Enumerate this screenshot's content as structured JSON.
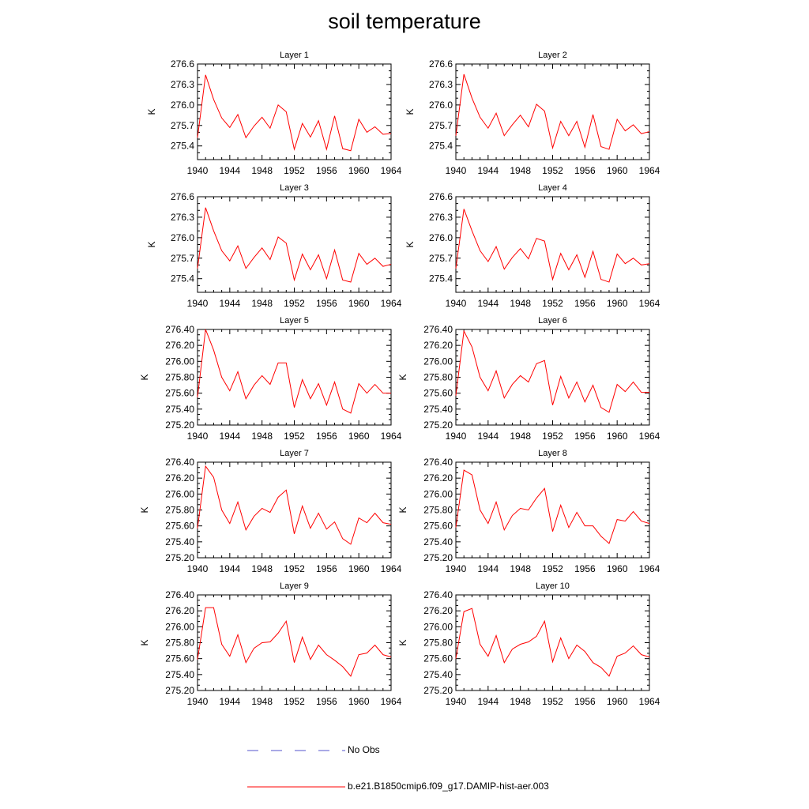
{
  "title": "soil temperature",
  "legend": [
    {
      "label": "No Obs",
      "color": "#5555cc",
      "style": "dashed"
    },
    {
      "label": "b.e21.B1850cmip6.f09_g17.DAMIP-hist-aer.003",
      "color": "#ff0000",
      "style": "solid"
    }
  ],
  "chart_data": [
    {
      "type": "line",
      "title": "Layer 1",
      "ylabel": "K",
      "xlim": [
        1940,
        1964
      ],
      "ylim": [
        275.2,
        276.6
      ],
      "xticks": [
        "1940",
        "1944",
        "1948",
        "1952",
        "1956",
        "1960",
        "1964"
      ],
      "yticks": [
        "275.4",
        "275.7",
        "276.0",
        "276.3",
        "276.6"
      ],
      "x": [
        1940,
        1941,
        1942,
        1943,
        1944,
        1945,
        1946,
        1947,
        1948,
        1949,
        1950,
        1951,
        1952,
        1953,
        1954,
        1955,
        1956,
        1957,
        1958,
        1959,
        1960,
        1961,
        1962,
        1963,
        1964
      ],
      "series": [
        {
          "color": "#ff0000",
          "values": [
            275.52,
            276.44,
            276.08,
            275.81,
            275.67,
            275.86,
            275.52,
            275.69,
            275.82,
            275.66,
            276.0,
            275.9,
            275.35,
            275.73,
            275.53,
            275.77,
            275.35,
            275.84,
            275.36,
            275.33,
            275.79,
            275.6,
            275.68,
            275.57,
            275.58
          ]
        }
      ]
    },
    {
      "type": "line",
      "title": "Layer 2",
      "ylabel": "K",
      "xlim": [
        1940,
        1964
      ],
      "ylim": [
        275.2,
        276.6
      ],
      "xticks": [
        "1940",
        "1944",
        "1948",
        "1952",
        "1956",
        "1960",
        "1964"
      ],
      "yticks": [
        "275.4",
        "275.7",
        "276.0",
        "276.3",
        "276.6"
      ],
      "x": [
        1940,
        1941,
        1942,
        1943,
        1944,
        1945,
        1946,
        1947,
        1948,
        1949,
        1950,
        1951,
        1952,
        1953,
        1954,
        1955,
        1956,
        1957,
        1958,
        1959,
        1960,
        1961,
        1962,
        1963,
        1964
      ],
      "series": [
        {
          "color": "#ff0000",
          "values": [
            275.55,
            276.45,
            276.1,
            275.82,
            275.66,
            275.88,
            275.55,
            275.71,
            275.85,
            275.68,
            276.01,
            275.91,
            275.37,
            275.76,
            275.55,
            275.76,
            275.38,
            275.86,
            275.39,
            275.35,
            275.79,
            275.62,
            275.71,
            275.58,
            275.61
          ]
        }
      ]
    },
    {
      "type": "line",
      "title": "Layer 3",
      "ylabel": "K",
      "xlim": [
        1940,
        1964
      ],
      "ylim": [
        275.2,
        276.6
      ],
      "xticks": [
        "1940",
        "1944",
        "1948",
        "1952",
        "1956",
        "1960",
        "1964"
      ],
      "yticks": [
        "275.4",
        "275.7",
        "276.0",
        "276.3",
        "276.6"
      ],
      "x": [
        1940,
        1941,
        1942,
        1943,
        1944,
        1945,
        1946,
        1947,
        1948,
        1949,
        1950,
        1951,
        1952,
        1953,
        1954,
        1955,
        1956,
        1957,
        1958,
        1959,
        1960,
        1961,
        1962,
        1963,
        1964
      ],
      "series": [
        {
          "color": "#ff0000",
          "values": [
            275.55,
            276.44,
            276.1,
            275.81,
            275.66,
            275.88,
            275.55,
            275.71,
            275.85,
            275.68,
            276.01,
            275.92,
            275.38,
            275.76,
            275.53,
            275.75,
            275.4,
            275.82,
            275.38,
            275.35,
            275.77,
            275.61,
            275.7,
            275.58,
            275.61
          ]
        }
      ]
    },
    {
      "type": "line",
      "title": "Layer 4",
      "ylabel": "K",
      "xlim": [
        1940,
        1964
      ],
      "ylim": [
        275.2,
        276.6
      ],
      "xticks": [
        "1940",
        "1944",
        "1948",
        "1952",
        "1956",
        "1960",
        "1964"
      ],
      "yticks": [
        "275.4",
        "275.7",
        "276.0",
        "276.3",
        "276.6"
      ],
      "x": [
        1940,
        1941,
        1942,
        1943,
        1944,
        1945,
        1946,
        1947,
        1948,
        1949,
        1950,
        1951,
        1952,
        1953,
        1954,
        1955,
        1956,
        1957,
        1958,
        1959,
        1960,
        1961,
        1962,
        1963,
        1964
      ],
      "series": [
        {
          "color": "#ff0000",
          "values": [
            275.55,
            276.42,
            276.1,
            275.81,
            275.65,
            275.87,
            275.54,
            275.71,
            275.84,
            275.69,
            275.99,
            275.95,
            275.39,
            275.77,
            275.53,
            275.75,
            275.42,
            275.8,
            275.39,
            275.35,
            275.76,
            275.62,
            275.7,
            275.6,
            275.62
          ]
        }
      ]
    },
    {
      "type": "line",
      "title": "Layer 5",
      "ylabel": "K",
      "xlim": [
        1940,
        1964
      ],
      "ylim": [
        275.2,
        276.4
      ],
      "xticks": [
        "1940",
        "1944",
        "1948",
        "1952",
        "1956",
        "1960",
        "1964"
      ],
      "yticks": [
        "275.20",
        "275.40",
        "275.60",
        "275.80",
        "276.00",
        "276.20",
        "276.40"
      ],
      "x": [
        1940,
        1941,
        1942,
        1943,
        1944,
        1945,
        1946,
        1947,
        1948,
        1949,
        1950,
        1951,
        1952,
        1953,
        1954,
        1955,
        1956,
        1957,
        1958,
        1959,
        1960,
        1961,
        1962,
        1963,
        1964
      ],
      "series": [
        {
          "color": "#ff0000",
          "values": [
            275.55,
            276.4,
            276.14,
            275.8,
            275.63,
            275.87,
            275.53,
            275.7,
            275.82,
            275.71,
            275.98,
            275.98,
            275.42,
            275.77,
            275.53,
            275.72,
            275.45,
            275.74,
            275.4,
            275.35,
            275.72,
            275.6,
            275.71,
            275.6,
            275.6
          ]
        }
      ]
    },
    {
      "type": "line",
      "title": "Layer 6",
      "ylabel": "K",
      "xlim": [
        1940,
        1964
      ],
      "ylim": [
        275.2,
        276.4
      ],
      "xticks": [
        "1940",
        "1944",
        "1948",
        "1952",
        "1956",
        "1960",
        "1964"
      ],
      "yticks": [
        "275.20",
        "275.40",
        "275.60",
        "275.80",
        "276.00",
        "276.20",
        "276.40"
      ],
      "x": [
        1940,
        1941,
        1942,
        1943,
        1944,
        1945,
        1946,
        1947,
        1948,
        1949,
        1950,
        1951,
        1952,
        1953,
        1954,
        1955,
        1956,
        1957,
        1958,
        1959,
        1960,
        1961,
        1962,
        1963,
        1964
      ],
      "series": [
        {
          "color": "#ff0000",
          "values": [
            275.57,
            276.38,
            276.18,
            275.8,
            275.63,
            275.88,
            275.54,
            275.71,
            275.82,
            275.74,
            275.97,
            276.01,
            275.45,
            275.81,
            275.54,
            275.74,
            275.49,
            275.7,
            275.42,
            275.36,
            275.71,
            275.62,
            275.74,
            275.61,
            275.61
          ]
        }
      ]
    },
    {
      "type": "line",
      "title": "Layer 7",
      "ylabel": "K",
      "xlim": [
        1940,
        1964
      ],
      "ylim": [
        275.2,
        276.4
      ],
      "xticks": [
        "1940",
        "1944",
        "1948",
        "1952",
        "1956",
        "1960",
        "1964"
      ],
      "yticks": [
        "275.20",
        "275.40",
        "275.60",
        "275.80",
        "276.00",
        "276.20",
        "276.40"
      ],
      "x": [
        1940,
        1941,
        1942,
        1943,
        1944,
        1945,
        1946,
        1947,
        1948,
        1949,
        1950,
        1951,
        1952,
        1953,
        1954,
        1955,
        1956,
        1957,
        1958,
        1959,
        1960,
        1961,
        1962,
        1963,
        1964
      ],
      "series": [
        {
          "color": "#ff0000",
          "values": [
            275.57,
            276.35,
            276.21,
            275.8,
            275.63,
            275.9,
            275.55,
            275.72,
            275.82,
            275.77,
            275.96,
            276.05,
            275.5,
            275.85,
            275.57,
            275.76,
            275.56,
            275.65,
            275.44,
            275.37,
            275.7,
            275.64,
            275.76,
            275.64,
            275.62
          ]
        }
      ]
    },
    {
      "type": "line",
      "title": "Layer 8",
      "ylabel": "K",
      "xlim": [
        1940,
        1964
      ],
      "ylim": [
        275.2,
        276.4
      ],
      "xticks": [
        "1940",
        "1944",
        "1948",
        "1952",
        "1956",
        "1960",
        "1964"
      ],
      "yticks": [
        "275.20",
        "275.40",
        "275.60",
        "275.80",
        "276.00",
        "276.20",
        "276.40"
      ],
      "x": [
        1940,
        1941,
        1942,
        1943,
        1944,
        1945,
        1946,
        1947,
        1948,
        1949,
        1950,
        1951,
        1952,
        1953,
        1954,
        1955,
        1956,
        1957,
        1958,
        1959,
        1960,
        1961,
        1962,
        1963,
        1964
      ],
      "series": [
        {
          "color": "#ff0000",
          "values": [
            275.58,
            276.3,
            276.24,
            275.8,
            275.63,
            275.9,
            275.55,
            275.73,
            275.82,
            275.8,
            275.95,
            276.07,
            275.53,
            275.86,
            275.58,
            275.77,
            275.6,
            275.6,
            275.47,
            275.38,
            275.68,
            275.66,
            275.78,
            275.66,
            275.63
          ]
        }
      ]
    },
    {
      "type": "line",
      "title": "Layer 9",
      "ylabel": "K",
      "xlim": [
        1940,
        1964
      ],
      "ylim": [
        275.2,
        276.4
      ],
      "xticks": [
        "1940",
        "1944",
        "1948",
        "1952",
        "1956",
        "1960",
        "1964"
      ],
      "yticks": [
        "275.20",
        "275.40",
        "275.60",
        "275.80",
        "276.00",
        "276.20",
        "276.40"
      ],
      "x": [
        1940,
        1941,
        1942,
        1943,
        1944,
        1945,
        1946,
        1947,
        1948,
        1949,
        1950,
        1951,
        1952,
        1953,
        1954,
        1955,
        1956,
        1957,
        1958,
        1959,
        1960,
        1961,
        1962,
        1963,
        1964
      ],
      "series": [
        {
          "color": "#ff0000",
          "values": [
            275.59,
            276.24,
            276.24,
            275.78,
            275.63,
            275.9,
            275.55,
            275.73,
            275.8,
            275.81,
            275.92,
            276.07,
            275.55,
            275.87,
            275.59,
            275.77,
            275.65,
            275.58,
            275.5,
            275.38,
            275.65,
            275.67,
            275.77,
            275.65,
            275.62
          ]
        }
      ]
    },
    {
      "type": "line",
      "title": "Layer 10",
      "ylabel": "K",
      "xlim": [
        1940,
        1964
      ],
      "ylim": [
        275.2,
        276.4
      ],
      "xticks": [
        "1940",
        "1944",
        "1948",
        "1952",
        "1956",
        "1960",
        "1964"
      ],
      "yticks": [
        "275.20",
        "275.40",
        "275.60",
        "275.80",
        "276.00",
        "276.20",
        "276.40"
      ],
      "x": [
        1940,
        1941,
        1942,
        1943,
        1944,
        1945,
        1946,
        1947,
        1948,
        1949,
        1950,
        1951,
        1952,
        1953,
        1954,
        1955,
        1956,
        1957,
        1958,
        1959,
        1960,
        1961,
        1962,
        1963,
        1964
      ],
      "series": [
        {
          "color": "#ff0000",
          "values": [
            275.6,
            276.19,
            276.23,
            275.78,
            275.63,
            275.89,
            275.55,
            275.72,
            275.78,
            275.81,
            275.88,
            276.07,
            275.56,
            275.86,
            275.6,
            275.77,
            275.69,
            275.55,
            275.49,
            275.38,
            275.63,
            275.67,
            275.76,
            275.65,
            275.62
          ]
        }
      ]
    }
  ]
}
